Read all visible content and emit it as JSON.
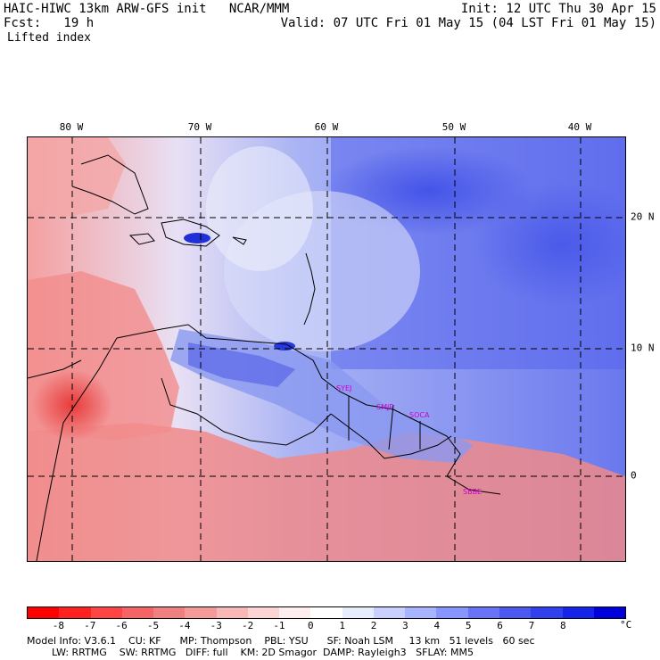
{
  "header": {
    "title": "HAIC-HIWC 13km ARW-GFS init   NCAR/MMM",
    "init": "Init: 12 UTC Thu 30 Apr 15",
    "fcst": "Fcst:   19 h",
    "valid": "Valid: 07 UTC Fri 01 May 15 (04 LST Fri 01 May 15)",
    "field": "Lifted index"
  },
  "map": {
    "lon_labels": [
      "80 W",
      "70 W",
      "60 W",
      "50 W",
      "40 W"
    ],
    "lat_labels": [
      "20 N",
      "10 N",
      "0"
    ],
    "stations": [
      "SYEJ",
      "SMJP",
      "SOCA",
      "SBBE"
    ]
  },
  "colorbar": {
    "ticks": [
      "-8",
      "-7",
      "-6",
      "-5",
      "-4",
      "-3",
      "-2",
      "-1",
      "0",
      "1",
      "2",
      "3",
      "4",
      "5",
      "6",
      "7",
      "8"
    ],
    "unit": "°C",
    "colors": [
      "#ff0000",
      "#ff2020",
      "#ff4444",
      "#f46464",
      "#f08080",
      "#f49a9a",
      "#f8b8b8",
      "#fcd4d4",
      "#ffeeee",
      "#ffffff",
      "#e8ecff",
      "#c8d0ff",
      "#a8b4ff",
      "#8894ff",
      "#6874f8",
      "#4c58f0",
      "#3040ec",
      "#1424e8",
      "#0000dd"
    ]
  },
  "footer": {
    "line1": "Model Info: V3.6.1    CU: KF      MP: Thompson    PBL: YSU      SF: Noah LSM     13 km   51 levels   60 sec",
    "line2": "        LW: RRTMG    SW: RRTMG   DIFF: full    KM: 2D Smagor  DAMP: Rayleigh3   SFLAY: MM5"
  }
}
